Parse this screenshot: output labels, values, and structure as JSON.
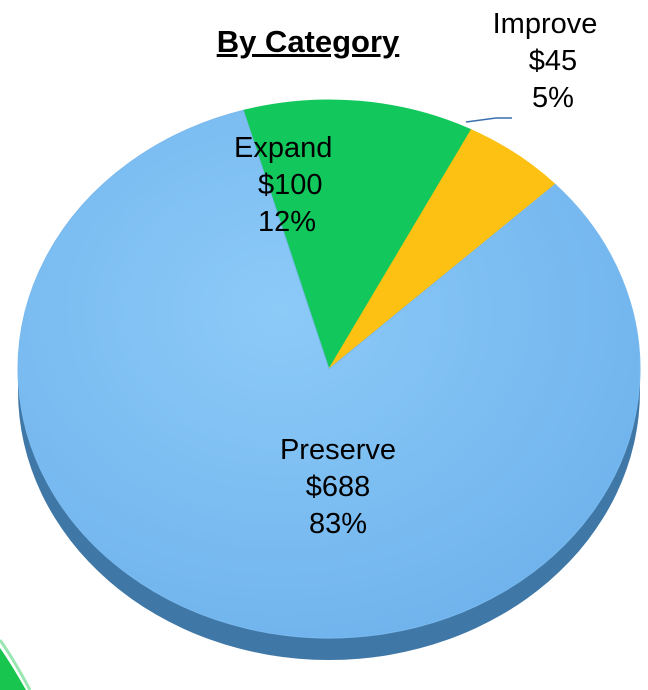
{
  "chart_data": {
    "type": "pie",
    "title": "By Category",
    "slices": [
      {
        "name": "Preserve",
        "value": 688,
        "value_label": "$688",
        "percent_label": "83%",
        "color": "#7fbff4"
      },
      {
        "name": "Expand",
        "value": 100,
        "value_label": "$100",
        "percent_label": "12%",
        "color": "#12c85c"
      },
      {
        "name": "Improve",
        "value": 45,
        "value_label": "$45",
        "percent_label": "5%",
        "color": "#fcc112"
      }
    ],
    "legend": "none",
    "style": "3d-tilted"
  },
  "colors": {
    "preserve_side": "#3f77a6",
    "leader_line": "#3b6fb0",
    "decor_green": "#18c64f"
  }
}
